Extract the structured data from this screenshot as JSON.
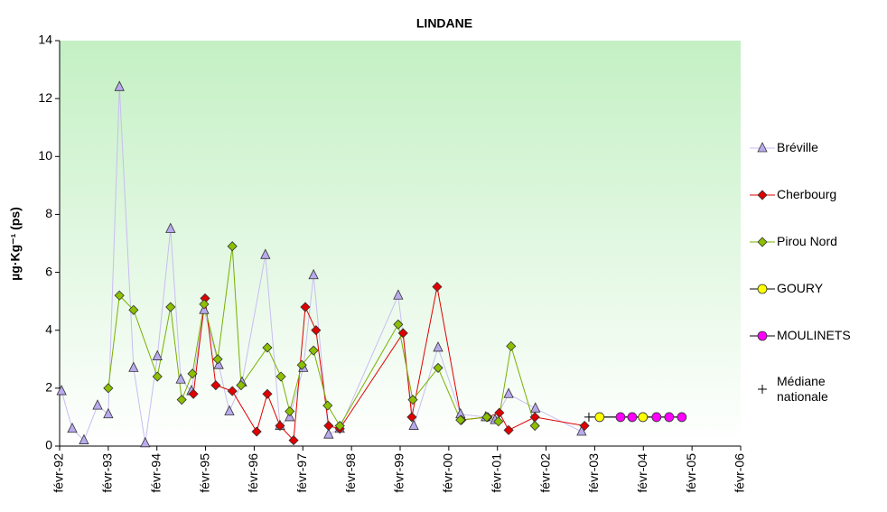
{
  "chart_data": {
    "type": "line",
    "title": "LINDANE",
    "y_label": "µg·Kg⁻¹ (ps)",
    "xlim": [
      1992.08,
      2006.08
    ],
    "xticks": [
      {
        "value": 1992.08,
        "label": "févr-92"
      },
      {
        "value": 1993.08,
        "label": "févr-93"
      },
      {
        "value": 1994.08,
        "label": "févr-94"
      },
      {
        "value": 1995.08,
        "label": "févr-95"
      },
      {
        "value": 1996.08,
        "label": "févr-96"
      },
      {
        "value": 1997.08,
        "label": "févr-97"
      },
      {
        "value": 1998.08,
        "label": "févr-98"
      },
      {
        "value": 1999.08,
        "label": "févr-99"
      },
      {
        "value": 2000.08,
        "label": "févr-00"
      },
      {
        "value": 2001.08,
        "label": "févr-01"
      },
      {
        "value": 2002.08,
        "label": "févr-02"
      },
      {
        "value": 2003.08,
        "label": "févr-03"
      },
      {
        "value": 2004.08,
        "label": "févr-04"
      },
      {
        "value": 2005.08,
        "label": "févr-05"
      },
      {
        "value": 2006.08,
        "label": "févr-06"
      }
    ],
    "ylim": [
      0,
      14
    ],
    "yticks": [
      0,
      2,
      4,
      6,
      8,
      10,
      12,
      14
    ],
    "legend": "right",
    "series": [
      {
        "name": "Bréville",
        "color": "#b9aaee",
        "line_color": "#c9bdf2",
        "marker": "triangle",
        "x": [
          1992.12,
          1992.34,
          1992.58,
          1992.86,
          1993.08,
          1993.31,
          1993.6,
          1993.84,
          1994.09,
          1994.36,
          1994.57,
          1994.79,
          1995.05,
          1995.35,
          1995.57,
          1995.83,
          1996.31,
          1996.61,
          1996.81,
          1997.09,
          1997.3,
          1997.61,
          1997.84,
          1999.04,
          1999.36,
          1999.86,
          2000.32,
          2000.84,
          2001.03,
          2001.31,
          2001.86,
          2002.81
        ],
        "values": [
          1.9,
          0.6,
          0.2,
          1.4,
          1.1,
          12.4,
          2.7,
          0.1,
          3.1,
          7.5,
          2.3,
          1.9,
          4.7,
          2.8,
          1.2,
          2.2,
          6.6,
          0.7,
          1.0,
          2.7,
          5.9,
          0.4,
          0.6,
          5.2,
          0.7,
          3.4,
          1.1,
          1.0,
          0.9,
          1.8,
          1.3,
          0.5
        ]
      },
      {
        "name": "Cherbourg",
        "color": "#e00000",
        "line_color": "#e00000",
        "marker": "diamond",
        "x": [
          1994.83,
          1995.07,
          1995.29,
          1995.63,
          1996.13,
          1996.35,
          1996.61,
          1996.89,
          1997.13,
          1997.35,
          1997.61,
          1997.84,
          1999.14,
          1999.32,
          1999.84,
          2000.34,
          2000.88,
          2001.12,
          2001.31,
          2001.85,
          2002.87
        ],
        "values": [
          1.8,
          5.1,
          2.1,
          1.9,
          0.5,
          1.8,
          0.7,
          0.2,
          4.8,
          4.0,
          0.7,
          0.6,
          3.9,
          1.0,
          5.5,
          0.9,
          1.0,
          1.15,
          0.55,
          1.0,
          0.7
        ]
      },
      {
        "name": "Pirou Nord",
        "color": "#8cc000",
        "line_color": "#78b000",
        "marker": "diamond",
        "x": [
          1993.08,
          1993.31,
          1993.6,
          1994.09,
          1994.36,
          1994.59,
          1994.81,
          1995.05,
          1995.33,
          1995.63,
          1995.81,
          1996.35,
          1996.63,
          1996.81,
          1997.06,
          1997.3,
          1997.59,
          1997.84,
          1999.04,
          1999.34,
          1999.86,
          2000.32,
          2000.86,
          2001.1,
          2001.36,
          2001.85
        ],
        "values": [
          2.0,
          5.2,
          4.7,
          2.4,
          4.8,
          1.6,
          2.5,
          4.9,
          3.0,
          6.9,
          2.1,
          3.4,
          2.4,
          1.2,
          2.8,
          3.3,
          1.4,
          0.7,
          4.2,
          1.6,
          2.7,
          0.9,
          1.0,
          0.85,
          3.45,
          0.7
        ]
      },
      {
        "name": "Médiane nationale",
        "color": "#000000",
        "line_color": "#000000",
        "marker": "plus",
        "x": [
          2002.96,
          2004.87
        ],
        "values": [
          1.0,
          1.0
        ]
      },
      {
        "name": "GOURY",
        "color": "#ffff00",
        "line_color": "#000000",
        "marker": "circle",
        "x": [
          2003.18,
          2004.07
        ],
        "values": [
          1.0,
          1.0
        ]
      },
      {
        "name": "MOULINETS",
        "color": "#ff00ff",
        "line_color": "#000000",
        "marker": "circle",
        "x": [
          2003.61,
          2003.85,
          2004.35,
          2004.61,
          2004.87
        ],
        "values": [
          1.0,
          1.0,
          1.0,
          1.0,
          1.0
        ]
      }
    ]
  }
}
